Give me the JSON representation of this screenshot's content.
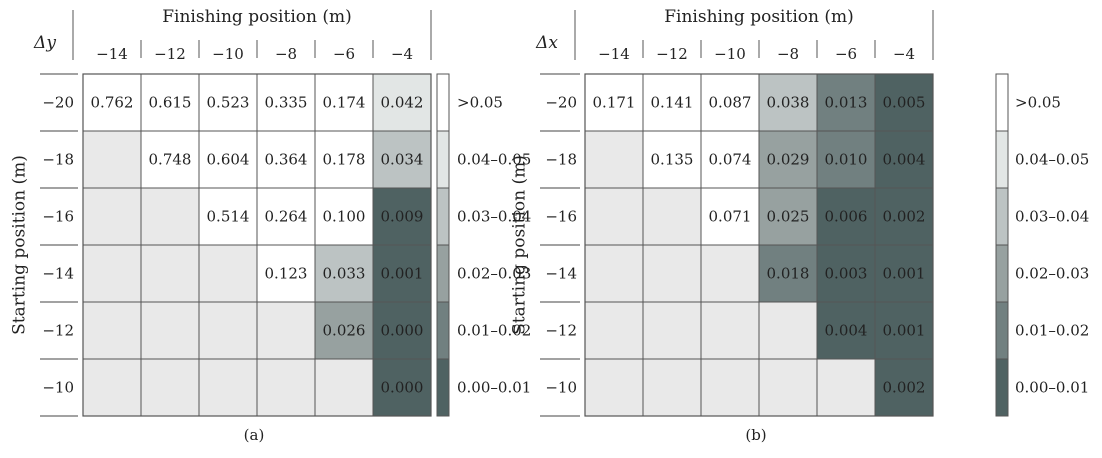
{
  "chart_data": [
    {
      "type": "heatmap",
      "panel_label": "(a)",
      "corner_label": "Δy",
      "xlabel": "Finishing position (m)",
      "ylabel": "Starting position (m)",
      "columns": [
        "−14",
        "−12",
        "−10",
        "−8",
        "−6",
        "−4"
      ],
      "rows": [
        "−20",
        "−18",
        "−16",
        "−14",
        "−12",
        "−10"
      ],
      "values": [
        [
          "0.762",
          "0.615",
          "0.523",
          "0.335",
          "0.174",
          "0.042"
        ],
        [
          null,
          "0.748",
          "0.604",
          "0.364",
          "0.178",
          "0.034"
        ],
        [
          null,
          null,
          "0.514",
          "0.264",
          "0.100",
          "0.009"
        ],
        [
          null,
          null,
          null,
          "0.123",
          "0.033",
          "0.001"
        ],
        [
          null,
          null,
          null,
          null,
          "0.026",
          "0.000"
        ],
        [
          null,
          null,
          null,
          null,
          null,
          "0.000"
        ]
      ]
    },
    {
      "type": "heatmap",
      "panel_label": "(b)",
      "corner_label": "Δx",
      "xlabel": "Finishing position (m)",
      "ylabel": "Starting position (m)",
      "columns": [
        "−14",
        "−12",
        "−10",
        "−8",
        "−6",
        "−4"
      ],
      "rows": [
        "−20",
        "−18",
        "−16",
        "−14",
        "−12",
        "−10"
      ],
      "values": [
        [
          "0.171",
          "0.141",
          "0.087",
          "0.038",
          "0.013",
          "0.005"
        ],
        [
          null,
          "0.135",
          "0.074",
          "0.029",
          "0.010",
          "0.004"
        ],
        [
          null,
          null,
          "0.071",
          "0.025",
          "0.006",
          "0.002"
        ],
        [
          null,
          null,
          null,
          "0.018",
          "0.003",
          "0.001"
        ],
        [
          null,
          null,
          null,
          null,
          "0.004",
          "0.001"
        ],
        [
          null,
          null,
          null,
          null,
          null,
          "0.002"
        ]
      ]
    }
  ],
  "legend": [
    {
      "label": ">0.05",
      "color": "#ffffff"
    },
    {
      "label": "0.04–0.05",
      "color": "#e2e6e5"
    },
    {
      "label": "0.03–0.04",
      "color": "#bcc3c3"
    },
    {
      "label": "0.02–0.03",
      "color": "#97a1a0"
    },
    {
      "label": "0.01–0.02",
      "color": "#718080"
    },
    {
      "label": "0.00–0.01",
      "color": "#4f6262"
    }
  ],
  "colors": {
    "empty_cell": "#e9e9e9",
    "grid_line": "#555555",
    "text_dark": "#222222"
  }
}
